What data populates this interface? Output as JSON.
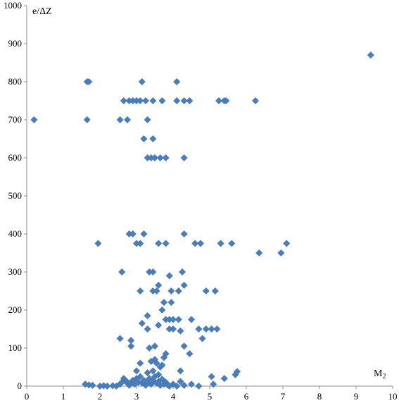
{
  "chart_data": {
    "type": "scatter",
    "title": "",
    "xlabel": "M",
    "xlabel_sub": "2",
    "ylabel": "e/ΔZ",
    "xlim": [
      0,
      10
    ],
    "ylim": [
      0,
      1000
    ],
    "x_ticks": [
      0,
      1,
      2,
      3,
      4,
      5,
      6,
      7,
      8,
      9,
      10
    ],
    "y_ticks": [
      0,
      100,
      200,
      300,
      400,
      500,
      600,
      700,
      800,
      900,
      1000
    ],
    "grid": false,
    "marker": "diamond",
    "color": "#4a7ebb",
    "series": [
      {
        "points": [
          [
            0.2,
            700
          ],
          [
            1.65,
            800
          ],
          [
            1.7,
            800
          ],
          [
            1.65,
            700
          ],
          [
            3.15,
            800
          ],
          [
            4.1,
            800
          ],
          [
            2.65,
            750
          ],
          [
            2.8,
            750
          ],
          [
            2.9,
            750
          ],
          [
            3.0,
            750
          ],
          [
            3.1,
            750
          ],
          [
            3.25,
            750
          ],
          [
            3.45,
            750
          ],
          [
            3.7,
            750
          ],
          [
            4.1,
            750
          ],
          [
            4.3,
            750
          ],
          [
            4.45,
            750
          ],
          [
            5.25,
            750
          ],
          [
            5.4,
            750
          ],
          [
            5.45,
            750
          ],
          [
            6.25,
            750
          ],
          [
            2.55,
            700
          ],
          [
            2.75,
            700
          ],
          [
            3.3,
            700
          ],
          [
            3.2,
            650
          ],
          [
            3.45,
            650
          ],
          [
            3.3,
            600
          ],
          [
            3.4,
            600
          ],
          [
            3.5,
            600
          ],
          [
            3.65,
            600
          ],
          [
            3.8,
            600
          ],
          [
            4.3,
            600
          ],
          [
            9.4,
            870
          ],
          [
            1.95,
            375
          ],
          [
            2.8,
            400
          ],
          [
            2.9,
            400
          ],
          [
            3.0,
            375
          ],
          [
            3.1,
            375
          ],
          [
            3.2,
            400
          ],
          [
            3.6,
            375
          ],
          [
            3.8,
            375
          ],
          [
            4.3,
            400
          ],
          [
            4.6,
            375
          ],
          [
            4.75,
            375
          ],
          [
            5.3,
            375
          ],
          [
            5.6,
            375
          ],
          [
            6.35,
            350
          ],
          [
            6.95,
            350
          ],
          [
            7.1,
            375
          ],
          [
            2.6,
            300
          ],
          [
            3.35,
            300
          ],
          [
            3.45,
            300
          ],
          [
            3.9,
            290
          ],
          [
            4.25,
            300
          ],
          [
            4.3,
            265
          ],
          [
            3.1,
            250
          ],
          [
            3.45,
            250
          ],
          [
            3.55,
            250
          ],
          [
            3.6,
            265
          ],
          [
            3.95,
            250
          ],
          [
            4.15,
            250
          ],
          [
            4.9,
            250
          ],
          [
            5.15,
            250
          ],
          [
            3.75,
            220
          ],
          [
            3.95,
            220
          ],
          [
            3.7,
            200
          ],
          [
            3.8,
            175
          ],
          [
            3.9,
            175
          ],
          [
            4.0,
            175
          ],
          [
            4.15,
            175
          ],
          [
            4.5,
            175
          ],
          [
            3.3,
            185
          ],
          [
            3.15,
            165
          ],
          [
            3.3,
            150
          ],
          [
            3.6,
            160
          ],
          [
            4.0,
            150
          ],
          [
            4.2,
            145
          ],
          [
            4.7,
            150
          ],
          [
            4.9,
            150
          ],
          [
            5.05,
            150
          ],
          [
            5.2,
            150
          ],
          [
            2.55,
            125
          ],
          [
            2.85,
            120
          ],
          [
            2.85,
            105
          ],
          [
            3.35,
            100
          ],
          [
            3.5,
            105
          ],
          [
            3.9,
            150
          ],
          [
            4.3,
            105
          ],
          [
            4.8,
            125
          ],
          [
            3.8,
            85
          ],
          [
            4.45,
            85
          ],
          [
            3.1,
            60
          ],
          [
            3.4,
            65
          ],
          [
            3.5,
            70
          ],
          [
            3.55,
            60
          ],
          [
            3.75,
            75
          ],
          [
            3.65,
            50
          ],
          [
            3.7,
            55
          ],
          [
            3.0,
            40
          ],
          [
            3.3,
            35
          ],
          [
            3.45,
            40
          ],
          [
            3.6,
            30
          ],
          [
            4.2,
            40
          ],
          [
            1.6,
            5
          ],
          [
            1.7,
            3
          ],
          [
            1.8,
            2
          ],
          [
            2.0,
            0
          ],
          [
            2.1,
            1
          ],
          [
            2.2,
            0
          ],
          [
            2.35,
            1
          ],
          [
            2.45,
            0
          ],
          [
            2.55,
            5
          ],
          [
            2.6,
            10
          ],
          [
            2.65,
            20
          ],
          [
            2.7,
            15
          ],
          [
            2.75,
            8
          ],
          [
            2.8,
            2
          ],
          [
            2.85,
            10
          ],
          [
            2.9,
            15
          ],
          [
            2.95,
            5
          ],
          [
            3.0,
            20
          ],
          [
            3.05,
            10
          ],
          [
            3.1,
            25
          ],
          [
            3.15,
            8
          ],
          [
            3.2,
            15
          ],
          [
            3.25,
            2
          ],
          [
            3.3,
            10
          ],
          [
            3.35,
            20
          ],
          [
            3.4,
            5
          ],
          [
            3.45,
            15
          ],
          [
            3.5,
            25
          ],
          [
            3.55,
            8
          ],
          [
            3.6,
            12
          ],
          [
            3.65,
            2
          ],
          [
            3.7,
            18
          ],
          [
            3.75,
            5
          ],
          [
            3.8,
            10
          ],
          [
            3.85,
            3
          ],
          [
            3.9,
            0
          ],
          [
            4.0,
            5
          ],
          [
            4.1,
            0
          ],
          [
            4.2,
            12
          ],
          [
            4.3,
            2
          ],
          [
            4.5,
            5
          ],
          [
            4.7,
            0
          ],
          [
            5.05,
            25
          ],
          [
            5.1,
            5
          ],
          [
            5.4,
            20
          ],
          [
            5.7,
            30
          ],
          [
            5.75,
            38
          ]
        ]
      }
    ]
  }
}
